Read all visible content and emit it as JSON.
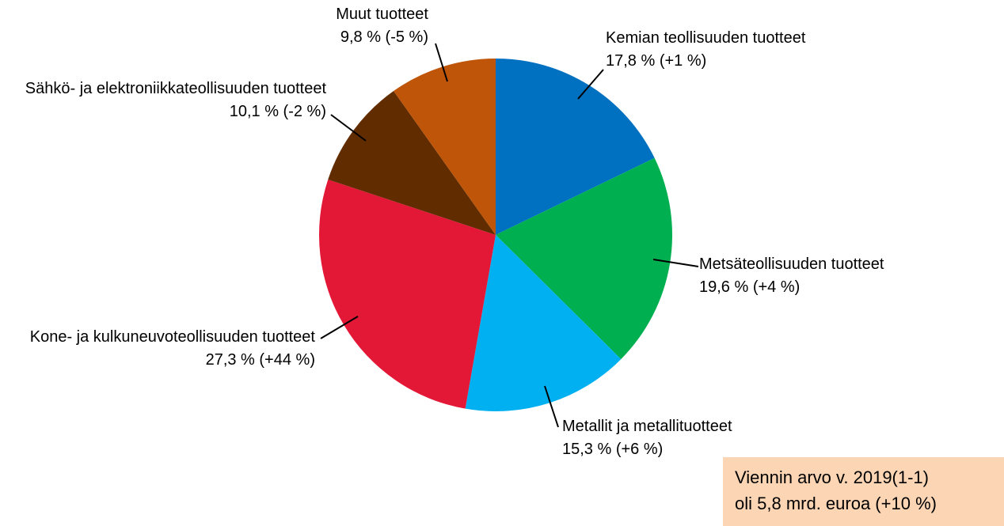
{
  "chart_data": {
    "type": "pie",
    "categories": [
      "Kemian teollisuuden tuotteet",
      "Metsäteollisuuden tuotteet",
      "Metallit ja metallituotteet",
      "Kone- ja kulkuneuvoteollisuuden tuotteet",
      "Sähkö- ja elektroniikkateollisuuden tuotteet",
      "Muut tuotteet"
    ],
    "values": [
      17.8,
      19.6,
      15.3,
      27.3,
      10.1,
      9.8
    ],
    "value_labels": [
      "17,8 % (+1 %)",
      "19,6 % (+4 %)",
      "15,3 % (+6 %)",
      "27,3 % (+44 %)",
      "10,1 % (-2 %)",
      "9,8 % (-5 %)"
    ],
    "colors": [
      "#0070c0",
      "#00b050",
      "#00b0f0",
      "#e31837",
      "#612c00",
      "#bf5508"
    ],
    "annotation": [
      "Viennin arvo v. 2019(1-1)",
      "oli 5,8 mrd. euroa (+10 %)"
    ]
  }
}
